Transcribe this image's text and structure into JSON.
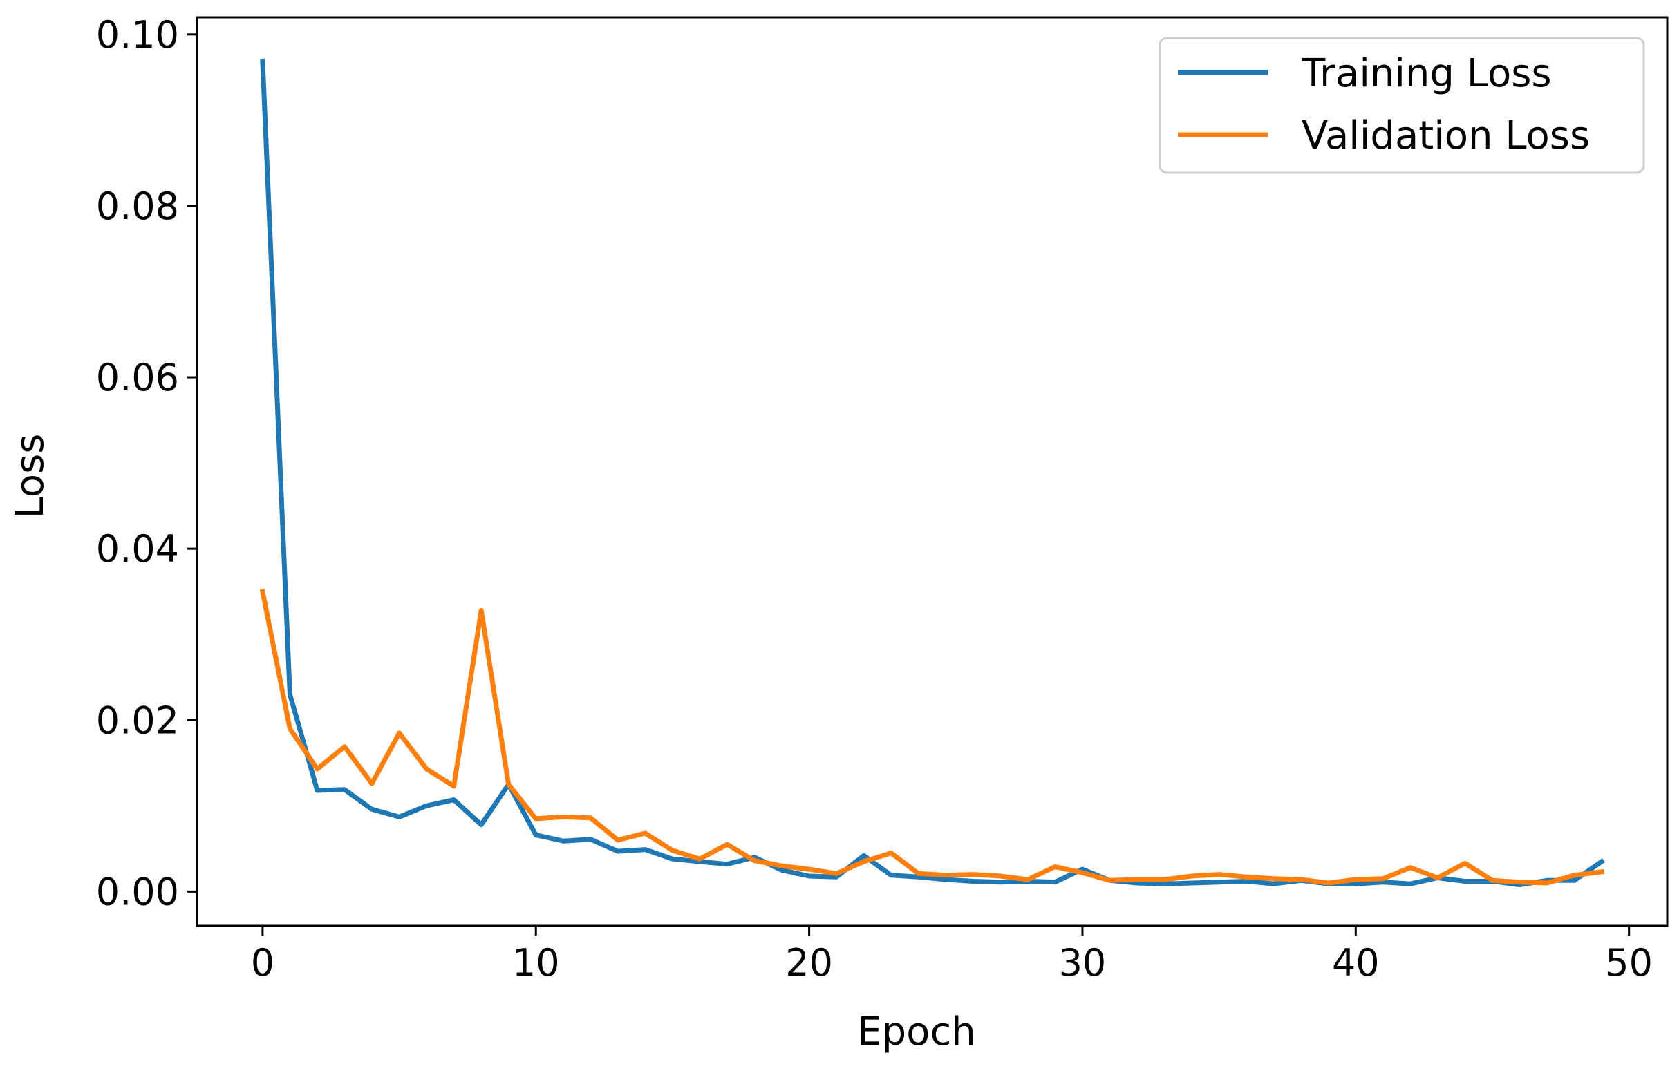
{
  "chart_data": {
    "type": "line",
    "title": "",
    "xlabel": "Epoch",
    "ylabel": "Loss",
    "xlim": [
      -2.4,
      51.4
    ],
    "ylim": [
      -0.004,
      0.102
    ],
    "xticks": [
      0,
      10,
      20,
      30,
      40,
      50
    ],
    "yticks": [
      0.0,
      0.02,
      0.04,
      0.06,
      0.08,
      0.1
    ],
    "ytick_labels": [
      "0.00",
      "0.02",
      "0.04",
      "0.06",
      "0.08",
      "0.10"
    ],
    "xtick_labels": [
      "0",
      "10",
      "20",
      "30",
      "40",
      "50"
    ],
    "grid": false,
    "legend_position": "top-right",
    "x": [
      0,
      1,
      2,
      3,
      4,
      5,
      6,
      7,
      8,
      9,
      10,
      11,
      12,
      13,
      14,
      15,
      16,
      17,
      18,
      19,
      20,
      21,
      22,
      23,
      24,
      25,
      26,
      27,
      28,
      29,
      30,
      31,
      32,
      33,
      34,
      35,
      36,
      37,
      38,
      39,
      40,
      41,
      42,
      43,
      44,
      45,
      46,
      47,
      48,
      49
    ],
    "series": [
      {
        "name": "Training Loss",
        "color": "#1f77b4",
        "values": [
          0.0969,
          0.023,
          0.0118,
          0.0119,
          0.0096,
          0.0087,
          0.01,
          0.0107,
          0.0078,
          0.0125,
          0.0066,
          0.0059,
          0.0061,
          0.0047,
          0.0049,
          0.0038,
          0.0035,
          0.0032,
          0.004,
          0.0025,
          0.0018,
          0.0017,
          0.0042,
          0.0019,
          0.0017,
          0.0014,
          0.0012,
          0.0011,
          0.0012,
          0.0011,
          0.0026,
          0.0013,
          0.001,
          0.0009,
          0.001,
          0.0011,
          0.0012,
          0.0009,
          0.0013,
          0.0009,
          0.0009,
          0.0011,
          0.0009,
          0.0016,
          0.0012,
          0.0012,
          0.0008,
          0.0013,
          0.0013,
          0.0035
        ]
      },
      {
        "name": "Validation Loss",
        "color": "#ff7f0e",
        "values": [
          0.035,
          0.019,
          0.0143,
          0.0169,
          0.0126,
          0.0185,
          0.0143,
          0.0123,
          0.0328,
          0.0125,
          0.0085,
          0.0087,
          0.0086,
          0.006,
          0.0068,
          0.0048,
          0.0038,
          0.0055,
          0.0036,
          0.003,
          0.0026,
          0.0021,
          0.0035,
          0.0045,
          0.0021,
          0.0019,
          0.002,
          0.0018,
          0.0014,
          0.0029,
          0.0022,
          0.0013,
          0.0014,
          0.0014,
          0.0018,
          0.002,
          0.0017,
          0.0015,
          0.0014,
          0.001,
          0.0014,
          0.0015,
          0.0028,
          0.0016,
          0.0033,
          0.0013,
          0.0011,
          0.001,
          0.0019,
          0.0023
        ]
      }
    ]
  }
}
